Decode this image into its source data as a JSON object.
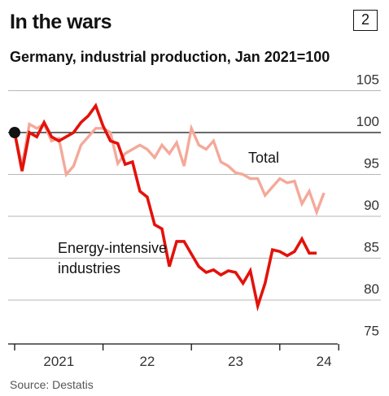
{
  "header": {
    "title": "In the wars",
    "badge": "2",
    "subtitle": "Germany, industrial production, Jan 2021=100"
  },
  "footer": {
    "source": "Source: Destatis"
  },
  "colors": {
    "energy_series": "#e3120b",
    "total_series": "#f4a99a",
    "baseline": "#121212",
    "grid": "#b7b7b7",
    "axis": "#121212"
  },
  "chart_data": {
    "type": "line",
    "title": "In the wars",
    "subtitle": "Germany, industrial production, Jan 2021=100",
    "x_ticks": [
      "2021",
      "22",
      "23",
      "24"
    ],
    "y_ticks": [
      75,
      80,
      85,
      90,
      95,
      100,
      105
    ],
    "ylim": [
      75,
      107
    ],
    "baseline": 100,
    "x_start": "2021-01",
    "x_end": "2024-08",
    "grid": "horizontal",
    "series": [
      {
        "name": "Total",
        "label_lines": [
          "Total"
        ],
        "values": [
          100,
          96,
          101,
          100.5,
          101,
          99,
          99.3,
          95,
          96,
          98.5,
          99.5,
          100.5,
          100.5,
          100,
          96.3,
          97.5,
          98,
          98.5,
          98,
          97,
          98.5,
          97.5,
          98.8,
          96,
          100.5,
          98.5,
          98,
          99,
          96.5,
          96,
          95.2,
          95,
          94.5,
          94.5,
          92.5,
          93.5,
          94.5,
          94,
          94.2,
          91.5,
          93,
          90.5,
          92.8
        ]
      },
      {
        "name": "Energy-intensive industries",
        "label_lines": [
          "Energy-intensive",
          "industries"
        ],
        "values": [
          100,
          95.4,
          100,
          99.5,
          101.2,
          99.5,
          99,
          99.5,
          100,
          101.2,
          102,
          103.2,
          100.8,
          99,
          98.7,
          96.2,
          96.5,
          93,
          92.3,
          89,
          88.5,
          84,
          87,
          87,
          85.5,
          84,
          83.3,
          83.6,
          83,
          83.5,
          83.3,
          82,
          83.5,
          79.3,
          82,
          86,
          85.8,
          85.3,
          85.8,
          87.3,
          85.6,
          85.6
        ]
      }
    ]
  }
}
